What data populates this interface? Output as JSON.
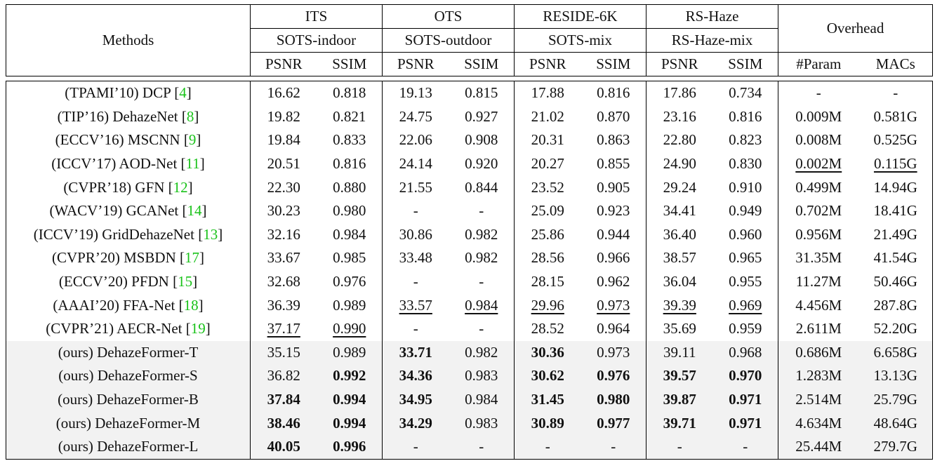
{
  "header": {
    "methods_label": "Methods",
    "groups": [
      {
        "name": "ITS",
        "subset": "SOTS-indoor"
      },
      {
        "name": "OTS",
        "subset": "SOTS-outdoor"
      },
      {
        "name": "RESIDE-6K",
        "subset": "SOTS-mix"
      },
      {
        "name": "RS-Haze",
        "subset": "RS-Haze-mix"
      }
    ],
    "overhead_label": "Overhead",
    "metrics": [
      "PSNR",
      "SSIM",
      "PSNR",
      "SSIM",
      "PSNR",
      "SSIM",
      "PSNR",
      "SSIM",
      "#Param",
      "MACs"
    ]
  },
  "rows": [
    {
      "venue": "(TPAMI’10)",
      "name": "DCP",
      "cite": "4",
      "values": [
        "16.62",
        "0.818",
        "19.13",
        "0.815",
        "17.88",
        "0.816",
        "17.86",
        "0.734",
        "-",
        "-"
      ]
    },
    {
      "venue": "(TIP’16)",
      "name": "DehazeNet",
      "cite": "8",
      "values": [
        "19.82",
        "0.821",
        "24.75",
        "0.927",
        "21.02",
        "0.870",
        "23.16",
        "0.816",
        "0.009M",
        "0.581G"
      ]
    },
    {
      "venue": "(ECCV’16)",
      "name": "MSCNN",
      "cite": "9",
      "values": [
        "19.84",
        "0.833",
        "22.06",
        "0.908",
        "20.31",
        "0.863",
        "22.80",
        "0.823",
        "0.008M",
        "0.525G"
      ]
    },
    {
      "venue": "(ICCV’17)",
      "name": "AOD-Net",
      "cite": "11",
      "values": [
        "20.51",
        "0.816",
        "24.14",
        "0.920",
        "20.27",
        "0.855",
        "24.90",
        "0.830",
        "0.002M",
        "0.115G"
      ]
    },
    {
      "venue": "(CVPR’18)",
      "name": "GFN",
      "cite": "12",
      "values": [
        "22.30",
        "0.880",
        "21.55",
        "0.844",
        "23.52",
        "0.905",
        "29.24",
        "0.910",
        "0.499M",
        "14.94G"
      ]
    },
    {
      "venue": "(WACV’19)",
      "name": "GCANet",
      "cite": "14",
      "values": [
        "30.23",
        "0.980",
        "-",
        "-",
        "25.09",
        "0.923",
        "34.41",
        "0.949",
        "0.702M",
        "18.41G"
      ]
    },
    {
      "venue": "(ICCV’19)",
      "name": "GridDehazeNet",
      "cite": "13",
      "values": [
        "32.16",
        "0.984",
        "30.86",
        "0.982",
        "25.86",
        "0.944",
        "36.40",
        "0.960",
        "0.956M",
        "21.49G"
      ]
    },
    {
      "venue": "(CVPR’20)",
      "name": "MSBDN",
      "cite": "17",
      "values": [
        "33.67",
        "0.985",
        "33.48",
        "0.982",
        "28.56",
        "0.966",
        "38.57",
        "0.965",
        "31.35M",
        "41.54G"
      ]
    },
    {
      "venue": "(ECCV’20)",
      "name": "PFDN",
      "cite": "15",
      "values": [
        "32.68",
        "0.976",
        "-",
        "-",
        "28.15",
        "0.962",
        "36.04",
        "0.955",
        "11.27M",
        "50.46G"
      ]
    },
    {
      "venue": "(AAAI’20)",
      "name": "FFA-Net",
      "cite": "18",
      "values": [
        "36.39",
        "0.989",
        "33.57",
        "0.984",
        "29.96",
        "0.973",
        "39.39",
        "0.969",
        "4.456M",
        "287.8G"
      ]
    },
    {
      "venue": "(CVPR’21)",
      "name": "AECR-Net",
      "cite": "19",
      "values": [
        "37.17",
        "0.990",
        "-",
        "-",
        "28.52",
        "0.964",
        "35.69",
        "0.959",
        "2.611M",
        "52.20G"
      ]
    },
    {
      "venue": "(ours)",
      "name": "DehazeFormer-T",
      "cite": "",
      "values": [
        "35.15",
        "0.989",
        "33.71",
        "0.982",
        "30.36",
        "0.973",
        "39.11",
        "0.968",
        "0.686M",
        "6.658G"
      ]
    },
    {
      "venue": "(ours)",
      "name": "DehazeFormer-S",
      "cite": "",
      "values": [
        "36.82",
        "0.992",
        "34.36",
        "0.983",
        "30.62",
        "0.976",
        "39.57",
        "0.970",
        "1.283M",
        "13.13G"
      ]
    },
    {
      "venue": "(ours)",
      "name": "DehazeFormer-B",
      "cite": "",
      "values": [
        "37.84",
        "0.994",
        "34.95",
        "0.984",
        "31.45",
        "0.980",
        "39.87",
        "0.971",
        "2.514M",
        "25.79G"
      ]
    },
    {
      "venue": "(ours)",
      "name": "DehazeFormer-M",
      "cite": "",
      "values": [
        "38.46",
        "0.994",
        "34.29",
        "0.983",
        "30.89",
        "0.977",
        "39.71",
        "0.971",
        "4.634M",
        "48.64G"
      ]
    },
    {
      "venue": "(ours)",
      "name": "DehazeFormer-L",
      "cite": "",
      "values": [
        "40.05",
        "0.996",
        "-",
        "-",
        "-",
        "-",
        "-",
        "-",
        "25.44M",
        "279.7G"
      ]
    }
  ],
  "emphasis": {
    "underline": [
      [
        9,
        2
      ],
      [
        9,
        3
      ],
      [
        9,
        4
      ],
      [
        9,
        5
      ],
      [
        9,
        6
      ],
      [
        9,
        7
      ],
      [
        10,
        0
      ],
      [
        10,
        1
      ],
      [
        3,
        8
      ],
      [
        3,
        9
      ]
    ],
    "bold": [
      [
        11,
        2
      ],
      [
        11,
        4
      ],
      [
        12,
        1
      ],
      [
        12,
        2
      ],
      [
        12,
        4
      ],
      [
        12,
        5
      ],
      [
        12,
        6
      ],
      [
        12,
        7
      ],
      [
        13,
        0
      ],
      [
        13,
        1
      ],
      [
        13,
        2
      ],
      [
        13,
        4
      ],
      [
        13,
        5
      ],
      [
        13,
        6
      ],
      [
        13,
        7
      ],
      [
        14,
        0
      ],
      [
        14,
        1
      ],
      [
        14,
        2
      ],
      [
        14,
        4
      ],
      [
        14,
        5
      ],
      [
        14,
        6
      ],
      [
        14,
        7
      ],
      [
        15,
        0
      ],
      [
        15,
        1
      ]
    ]
  },
  "colors": {
    "citation": "#19c219",
    "ours_row_bg": "#f2f2f2"
  }
}
